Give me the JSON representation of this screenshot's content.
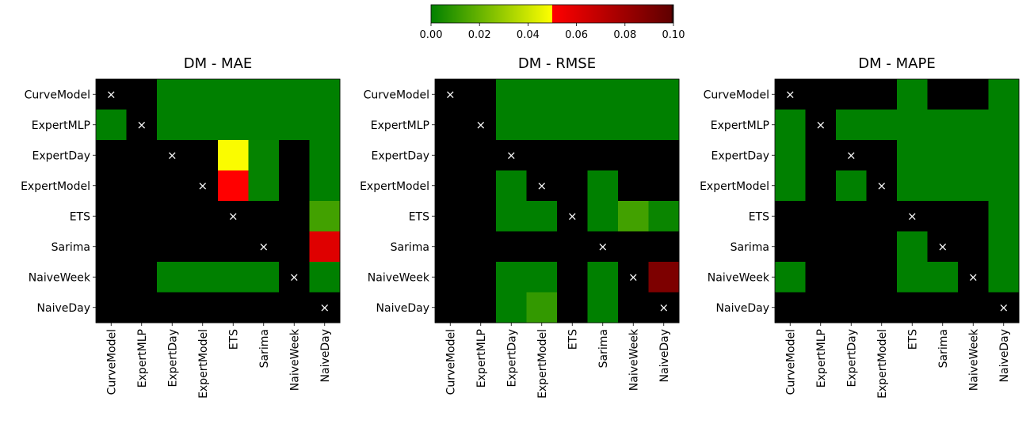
{
  "labels": [
    "CurveModel",
    "ExpertMLP",
    "ExpertDay",
    "ExpertModel",
    "ETS",
    "Sarima",
    "NaiveWeek",
    "NaiveDay"
  ],
  "diagonal_marker": "×",
  "colorbar": {
    "ticks": [
      "0.00",
      "0.02",
      "0.04",
      "0.06",
      "0.08",
      "0.10"
    ],
    "tick_values": [
      0,
      0.02,
      0.04,
      0.06,
      0.08,
      0.1
    ],
    "vmin": 0,
    "vmax": 0.1,
    "gradient_stops": [
      {
        "value": 0.0,
        "color": "#008000"
      },
      {
        "value": 0.05,
        "color": "#ffff00"
      },
      {
        "value": 0.05,
        "color": "#ff0000"
      },
      {
        "value": 0.099,
        "color": "#600000"
      },
      {
        "value": 0.1,
        "color": "#000000"
      }
    ]
  },
  "colors": {
    "above_range": "#000000"
  },
  "chart_data": [
    {
      "type": "heatmap",
      "title": "DM - MAE",
      "rows": [
        "CurveModel",
        "ExpertMLP",
        "ExpertDay",
        "ExpertModel",
        "ETS",
        "Sarima",
        "NaiveWeek",
        "NaiveDay"
      ],
      "cols": [
        "CurveModel",
        "ExpertMLP",
        "ExpertDay",
        "ExpertModel",
        "ETS",
        "Sarima",
        "NaiveWeek",
        "NaiveDay"
      ],
      "values": [
        [
          null,
          1,
          0,
          0,
          0,
          0,
          0,
          0
        ],
        [
          0,
          null,
          0,
          0,
          0,
          0,
          0,
          0
        ],
        [
          1,
          1,
          null,
          1,
          0.049,
          0.001,
          1,
          0
        ],
        [
          1,
          1,
          1,
          null,
          0.05,
          0.001,
          1,
          0
        ],
        [
          1,
          1,
          1,
          1,
          null,
          1,
          1,
          0.013
        ],
        [
          1,
          1,
          1,
          1,
          1,
          null,
          1,
          0.06
        ],
        [
          1,
          1,
          0,
          0,
          0,
          0,
          null,
          0
        ],
        [
          1,
          1,
          1,
          1,
          1,
          1,
          1,
          null
        ]
      ]
    },
    {
      "type": "heatmap",
      "title": "DM - RMSE",
      "rows": [
        "CurveModel",
        "ExpertMLP",
        "ExpertDay",
        "ExpertModel",
        "ETS",
        "Sarima",
        "NaiveWeek",
        "NaiveDay"
      ],
      "cols": [
        "CurveModel",
        "ExpertMLP",
        "ExpertDay",
        "ExpertModel",
        "ETS",
        "Sarima",
        "NaiveWeek",
        "NaiveDay"
      ],
      "values": [
        [
          null,
          1,
          0,
          0,
          0,
          0,
          0,
          0
        ],
        [
          1,
          null,
          0,
          0,
          0,
          0,
          0,
          0
        ],
        [
          1,
          1,
          null,
          1,
          1,
          1,
          1,
          1
        ],
        [
          1,
          1,
          0,
          null,
          1,
          0,
          1,
          1
        ],
        [
          1,
          1,
          0,
          0,
          null,
          0,
          0.013,
          0.002
        ],
        [
          1,
          1,
          1,
          1,
          1,
          null,
          1,
          1
        ],
        [
          1,
          1,
          0,
          0,
          1,
          0,
          null,
          0.09
        ],
        [
          1,
          1,
          0,
          0.01,
          1,
          0,
          1,
          null
        ]
      ]
    },
    {
      "type": "heatmap",
      "title": "DM - MAPE",
      "rows": [
        "CurveModel",
        "ExpertMLP",
        "ExpertDay",
        "ExpertModel",
        "ETS",
        "Sarima",
        "NaiveWeek",
        "NaiveDay"
      ],
      "cols": [
        "CurveModel",
        "ExpertMLP",
        "ExpertDay",
        "ExpertModel",
        "ETS",
        "Sarima",
        "NaiveWeek",
        "NaiveDay"
      ],
      "values": [
        [
          null,
          1,
          1,
          1,
          0,
          1,
          1,
          0
        ],
        [
          0,
          null,
          0,
          0,
          0,
          0,
          0,
          0
        ],
        [
          0,
          1,
          null,
          1,
          0,
          0,
          0,
          0
        ],
        [
          0,
          1,
          0,
          null,
          0,
          0,
          0,
          0
        ],
        [
          1,
          1,
          1,
          1,
          null,
          1,
          1,
          0
        ],
        [
          1,
          1,
          1,
          1,
          0,
          null,
          1,
          0
        ],
        [
          0,
          1,
          1,
          1,
          0,
          0,
          null,
          0
        ],
        [
          1,
          1,
          1,
          1,
          1,
          1,
          1,
          null
        ]
      ]
    }
  ]
}
